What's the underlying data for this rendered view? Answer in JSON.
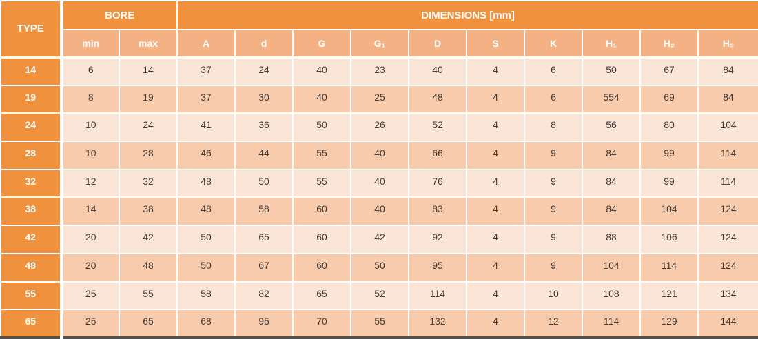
{
  "colors": {
    "header_orange": "#F0913E",
    "subheader_orange": "#F4B183",
    "row_light": "#FBE5D6",
    "row_dark": "#F7CBAC",
    "header_text": "#FFFFFF",
    "data_text": "#453C38",
    "grid_white": "#FFFFFF",
    "bottom_line": "#55504A"
  },
  "table": {
    "corner_header": "TYPE",
    "group_headers": [
      {
        "label": "BORE",
        "span": 2
      },
      {
        "label": "DIMENSIONS [mm]",
        "span": 10
      }
    ],
    "sub_headers": [
      "min",
      "max",
      "A",
      "d",
      "G",
      "G₁",
      "D",
      "S",
      "K",
      "H₁",
      "H₂",
      "H₃"
    ],
    "rows": [
      {
        "type": "14",
        "values": [
          "6",
          "14",
          "37",
          "24",
          "40",
          "23",
          "40",
          "4",
          "6",
          "50",
          "67",
          "84"
        ]
      },
      {
        "type": "19",
        "values": [
          "8",
          "19",
          "37",
          "30",
          "40",
          "25",
          "48",
          "4",
          "6",
          "554",
          "69",
          "84"
        ]
      },
      {
        "type": "24",
        "values": [
          "10",
          "24",
          "41",
          "36",
          "50",
          "26",
          "52",
          "4",
          "8",
          "56",
          "80",
          "104"
        ]
      },
      {
        "type": "28",
        "values": [
          "10",
          "28",
          "46",
          "44",
          "55",
          "40",
          "66",
          "4",
          "9",
          "84",
          "99",
          "114"
        ]
      },
      {
        "type": "32",
        "values": [
          "12",
          "32",
          "48",
          "50",
          "55",
          "40",
          "76",
          "4",
          "9",
          "84",
          "99",
          "114"
        ]
      },
      {
        "type": "38",
        "values": [
          "14",
          "38",
          "48",
          "58",
          "60",
          "40",
          "83",
          "4",
          "9",
          "84",
          "104",
          "124"
        ]
      },
      {
        "type": "42",
        "values": [
          "20",
          "42",
          "50",
          "65",
          "60",
          "42",
          "92",
          "4",
          "9",
          "88",
          "106",
          "124"
        ]
      },
      {
        "type": "48",
        "values": [
          "20",
          "48",
          "50",
          "67",
          "60",
          "50",
          "95",
          "4",
          "9",
          "104",
          "114",
          "124"
        ]
      },
      {
        "type": "55",
        "values": [
          "25",
          "55",
          "58",
          "82",
          "65",
          "52",
          "114",
          "4",
          "10",
          "108",
          "121",
          "134"
        ]
      },
      {
        "type": "65",
        "values": [
          "25",
          "65",
          "68",
          "95",
          "70",
          "55",
          "132",
          "4",
          "12",
          "114",
          "129",
          "144"
        ]
      }
    ]
  }
}
